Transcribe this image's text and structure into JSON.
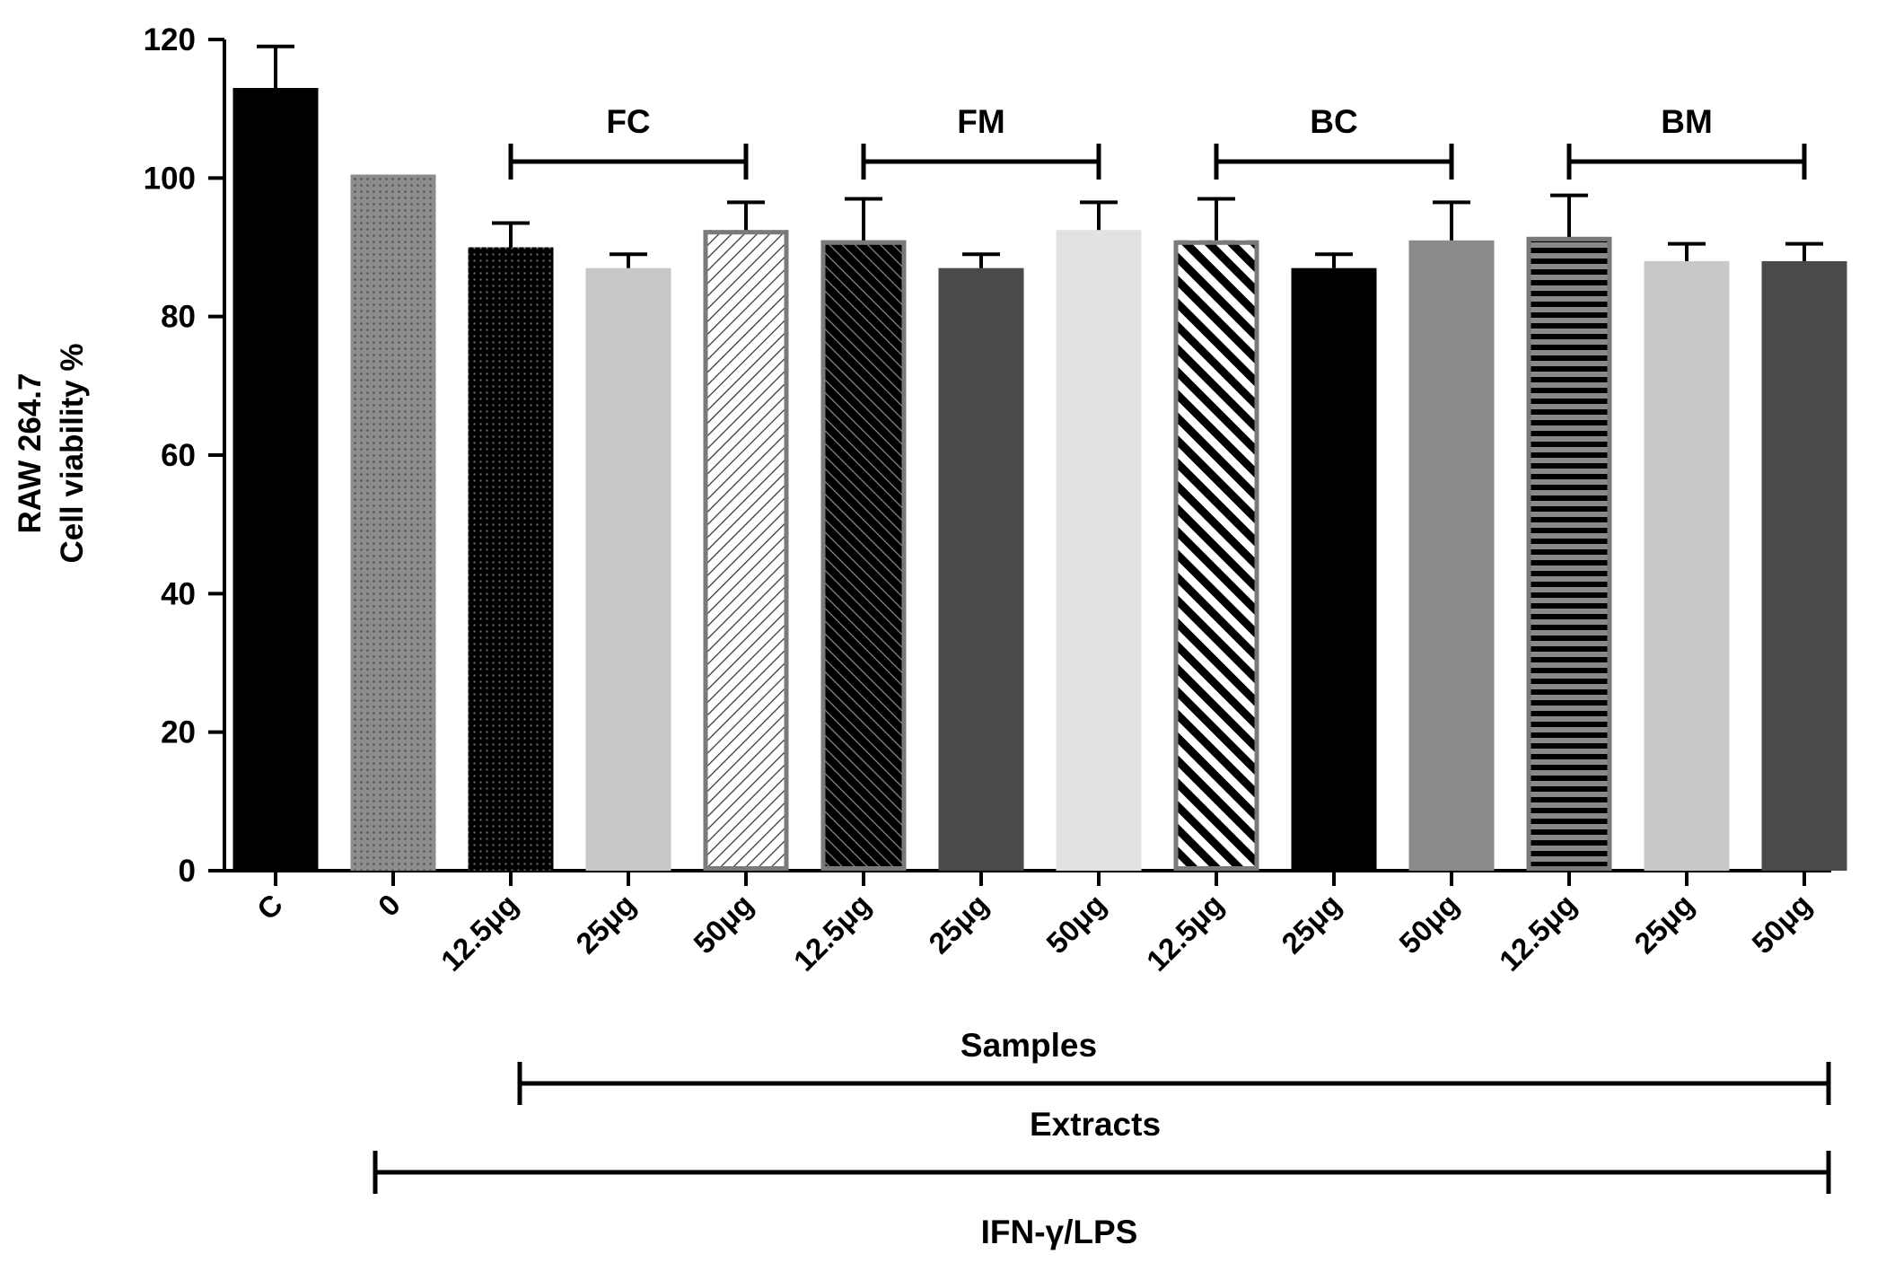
{
  "chart_data": {
    "type": "bar",
    "ylabel_line1": "RAW 264.7",
    "ylabel_line2": "Cell viability %",
    "xlabel": "Samples",
    "ylim": [
      0,
      120
    ],
    "yticks": [
      "0",
      "20",
      "40",
      "60",
      "80",
      "100",
      "120"
    ],
    "categories": [
      "C",
      "0",
      "12.5μg",
      "25μg",
      "50μg",
      "12.5μg",
      "25μg",
      "50μg",
      "12.5μg",
      "25μg",
      "50μg",
      "12.5μg",
      "25μg",
      "50μg"
    ],
    "values": [
      113,
      100.5,
      90,
      87,
      92.5,
      91,
      87,
      92.5,
      91,
      87,
      91,
      91.5,
      88,
      88
    ],
    "errors": [
      6,
      0,
      3.5,
      2,
      4,
      6,
      2,
      4,
      6,
      2,
      5.5,
      6,
      2.5,
      2.5
    ],
    "bar_styles": [
      {
        "fill": "#000000",
        "pattern": "none"
      },
      {
        "fill": "#8c8c8c",
        "pattern": "dots-light"
      },
      {
        "fill": "#000000",
        "pattern": "dots-dark"
      },
      {
        "fill": "#c8c8c8",
        "pattern": "none"
      },
      {
        "fill": "#ffffff",
        "pattern": "diag-fwd",
        "border": "#7a7a7a"
      },
      {
        "fill": "#000000",
        "pattern": "diag-back-dark",
        "border": "#7a7a7a"
      },
      {
        "fill": "#4a4a4a",
        "pattern": "none"
      },
      {
        "fill": "#e2e2e2",
        "pattern": "none"
      },
      {
        "fill": "#ffffff",
        "pattern": "diag-back-wide",
        "border": "#7a7a7a"
      },
      {
        "fill": "#000000",
        "pattern": "none"
      },
      {
        "fill": "#8a8a8a",
        "pattern": "none"
      },
      {
        "fill": "#000000",
        "pattern": "horiz",
        "border": "#7a7a7a"
      },
      {
        "fill": "#c8c8c8",
        "pattern": "none"
      },
      {
        "fill": "#4a4a4a",
        "pattern": "none"
      }
    ],
    "groups": [
      {
        "label": "FC",
        "from": 2,
        "to": 4
      },
      {
        "label": "FM",
        "from": 5,
        "to": 7
      },
      {
        "label": "BC",
        "from": 8,
        "to": 10
      },
      {
        "label": "BM",
        "from": 11,
        "to": 13
      }
    ],
    "brackets": [
      {
        "label": "Extracts",
        "from": 2,
        "to": 13
      },
      {
        "label": "IFN-γ/LPS",
        "from": 1,
        "to": 13
      }
    ]
  }
}
